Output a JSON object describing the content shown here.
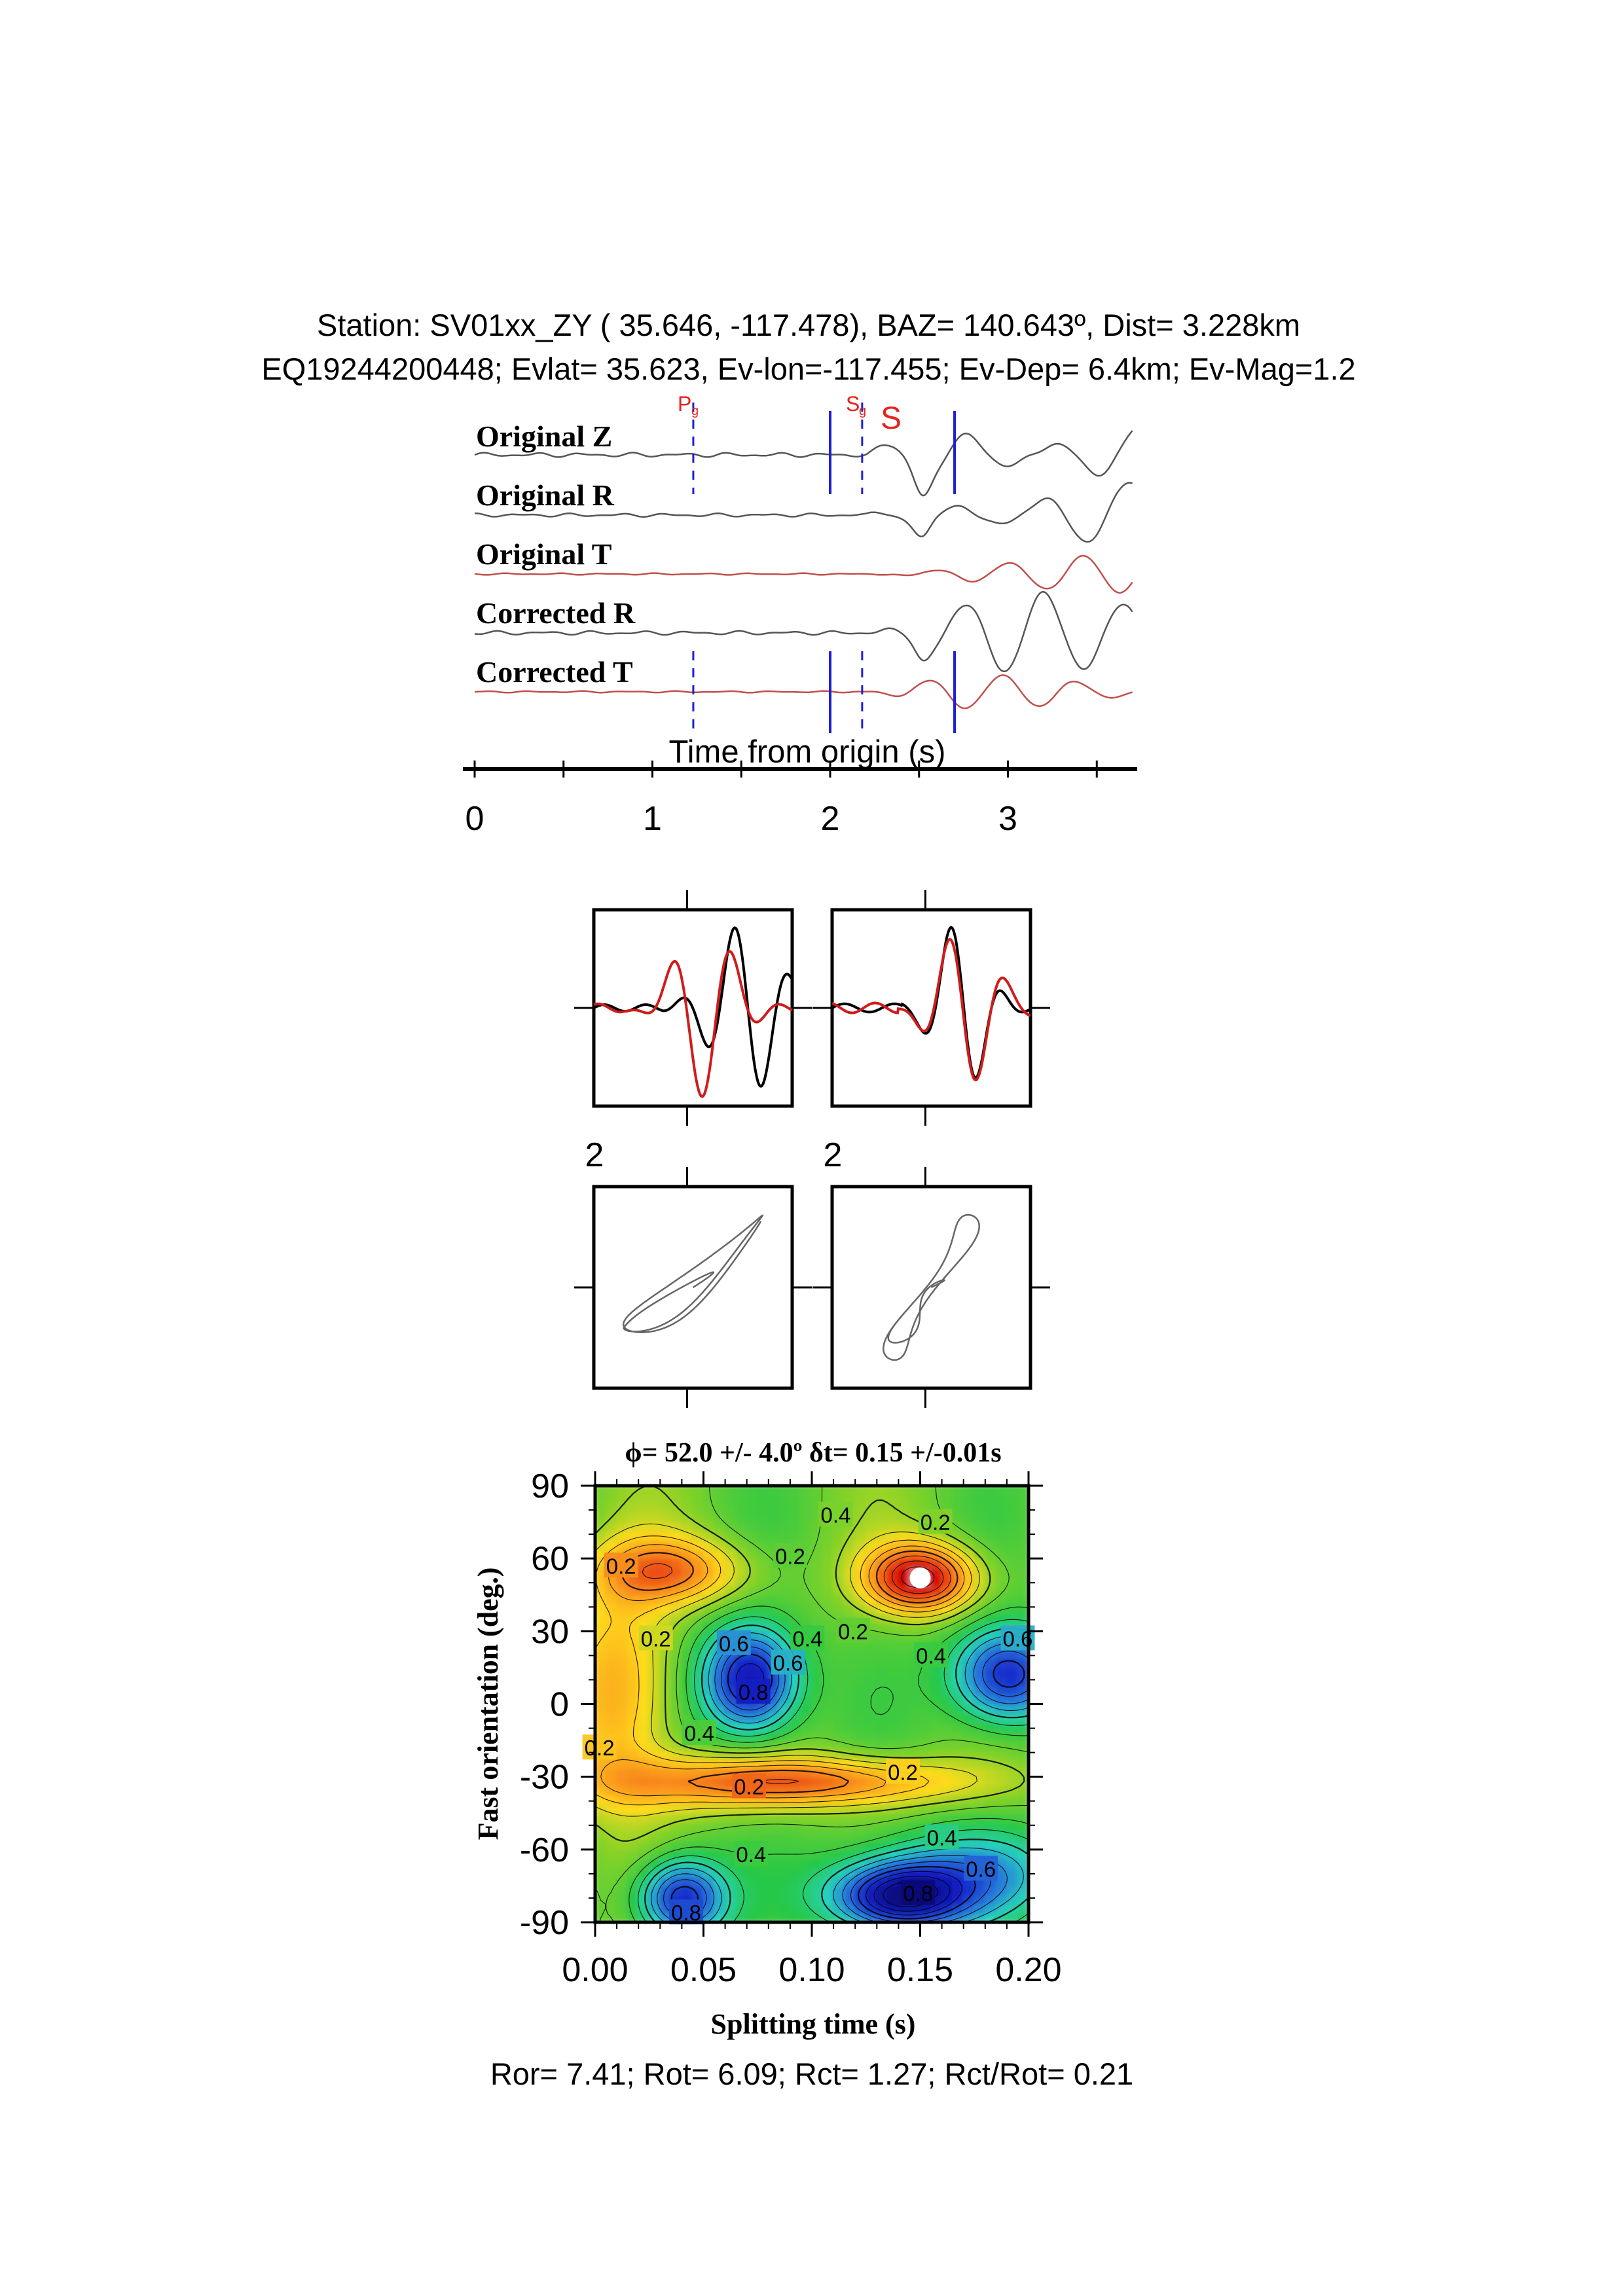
{
  "header": {
    "line1": "Station: SV01xx_ZY ( 35.646, -117.478), BAZ=  140.643º, Dist=    3.228km",
    "line2": "EQ19244200448; Evlat=  35.623, Ev-lon=-117.455; Ev-Dep=  6.4km; Ev-Mag=1.2"
  },
  "colors": {
    "black_trace": "#555555",
    "red_trace": "#c0504d",
    "marker": "#1f1fd6",
    "phase": "#e8221e"
  },
  "traces": {
    "labels": [
      "Original Z",
      "Original R",
      "Original T",
      "Corrected R",
      "Corrected T"
    ],
    "phase_labels": {
      "p_main": "P",
      "p_sub": "g",
      "s_main": "S",
      "s_sub": "g",
      "s_big": "S"
    },
    "xlabel": "Time from origin (s)",
    "ticks": [
      "0",
      "1",
      "2",
      "3"
    ],
    "markers": {
      "pg": 1.23,
      "sg": 2.18,
      "win_start": 2.0,
      "win_end": 2.7
    }
  },
  "waveform_panels": {
    "left_tick": "2",
    "right_tick": "2"
  },
  "chart_data": {
    "type": "heatmap",
    "title_phi": "ϕ= 52.0 +/- 4.0º δt= 0.15 +/-0.01s",
    "xlabel": "Splitting time (s)",
    "ylabel": "Fast orientation (deg.)",
    "xlim": [
      0.0,
      0.2
    ],
    "ylim": [
      -90,
      90
    ],
    "xticks": [
      "0.00",
      "0.05",
      "0.10",
      "0.15",
      "0.20"
    ],
    "yticks": [
      "90",
      "60",
      "30",
      "0",
      "-30",
      "-60",
      "-90"
    ],
    "best_fit": {
      "dt": 0.15,
      "phi": 52
    },
    "contour_labels": [
      {
        "t": "0.4",
        "x": 0.111,
        "y": 78
      },
      {
        "t": "0.2",
        "x": 0.157,
        "y": 75
      },
      {
        "t": "0.2",
        "x": 0.09,
        "y": 61
      },
      {
        "t": "0.2",
        "x": 0.012,
        "y": 57
      },
      {
        "t": "0.2",
        "x": 0.028,
        "y": 27
      },
      {
        "t": "0.6",
        "x": 0.064,
        "y": 25
      },
      {
        "t": "0.4",
        "x": 0.098,
        "y": 27
      },
      {
        "t": "0.2",
        "x": 0.119,
        "y": 30
      },
      {
        "t": "0.6",
        "x": 0.089,
        "y": 17
      },
      {
        "t": "0.8",
        "x": 0.073,
        "y": 5
      },
      {
        "t": "0.4",
        "x": 0.155,
        "y": 20
      },
      {
        "t": "0.6",
        "x": 0.195,
        "y": 27
      },
      {
        "t": "0.4",
        "x": 0.048,
        "y": -12
      },
      {
        "t": "0.2",
        "x": 0.002,
        "y": -18
      },
      {
        "t": "0.2",
        "x": 0.142,
        "y": -28
      },
      {
        "t": "0.2",
        "x": 0.071,
        "y": -34
      },
      {
        "t": "0.4",
        "x": 0.072,
        "y": -62
      },
      {
        "t": "0.4",
        "x": 0.16,
        "y": -55
      },
      {
        "t": "0.6",
        "x": 0.178,
        "y": -68
      },
      {
        "t": "0.8",
        "x": 0.149,
        "y": -78
      },
      {
        "t": "0.8",
        "x": 0.042,
        "y": -86
      }
    ]
  },
  "footer": "Ror= 7.41; Rot= 6.09; Rct= 1.27; Rct/Rot= 0.21"
}
